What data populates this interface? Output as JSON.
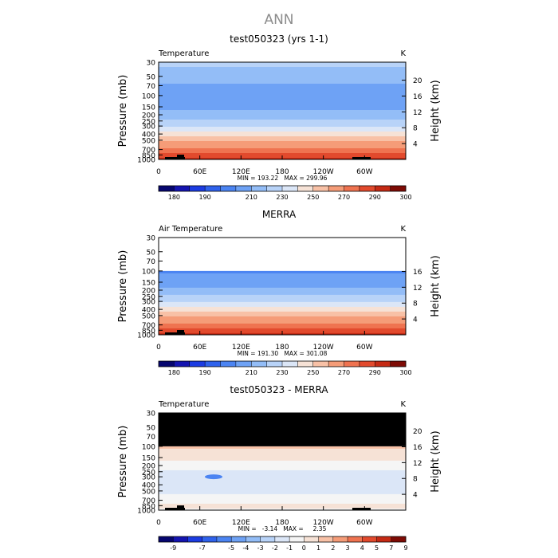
{
  "page_title": "ANN",
  "colors": {
    "temp_scale": [
      "#06066f",
      "#1414b0",
      "#1c3ce2",
      "#2f62ec",
      "#4b84f2",
      "#6ea2f5",
      "#93bdf7",
      "#b8d3f8",
      "#dbe6f7",
      "#f6e2d6",
      "#f8c1a6",
      "#f59c78",
      "#ef7350",
      "#e24a2d",
      "#c52a14",
      "#7e0b05"
    ],
    "diff_scale": [
      "#06066f",
      "#1414b0",
      "#1c3ce2",
      "#2f62ec",
      "#4b84f2",
      "#6ea2f5",
      "#93bdf7",
      "#b8d3f8",
      "#dbe6f7",
      "#f5f5f5",
      "#f6e2d6",
      "#f8c1a6",
      "#f59c78",
      "#ef7350",
      "#e24a2d",
      "#c52a14",
      "#7e0b05"
    ]
  },
  "chart_data": [
    {
      "type": "heatmap",
      "title": "test050323 (yrs 1-1)",
      "variable_label": "Temperature",
      "units": "K",
      "ylabel": "Pressure (mb)",
      "ylabel_right": "Height (km)",
      "x_ticks": [
        "0",
        "60E",
        "120E",
        "180",
        "120W",
        "60W"
      ],
      "p_ticks": [
        30,
        50,
        70,
        100,
        150,
        200,
        250,
        300,
        400,
        500,
        700,
        850,
        1000
      ],
      "height_ticks": [
        20,
        16,
        12,
        8,
        4
      ],
      "ylim": [
        1000,
        30
      ],
      "stats": "MIN = 193.22   MAX = 299.96",
      "min": 193.22,
      "max": 299.96,
      "colorbar": {
        "levels": [
          180,
          185,
          190,
          195,
          200,
          210,
          220,
          230,
          240,
          250,
          260,
          270,
          280,
          290,
          295,
          300
        ],
        "labels": [
          "180",
          "190",
          "210",
          "230",
          "250",
          "270",
          "290",
          "300"
        ]
      },
      "approx_zonal_profile": {
        "pressure": [
          30,
          50,
          70,
          100,
          150,
          200,
          250,
          300,
          400,
          500,
          700,
          850,
          1000
        ],
        "value": [
          222,
          215,
          208,
          200,
          206,
          214,
          222,
          230,
          245,
          258,
          274,
          284,
          292
        ]
      }
    },
    {
      "type": "heatmap",
      "title": "MERRA",
      "variable_label": "Air Temperature",
      "units": "K",
      "ylabel": "Pressure (mb)",
      "ylabel_right": "Height (km)",
      "x_ticks": [
        "0",
        "60E",
        "120E",
        "180",
        "120W",
        "60W"
      ],
      "p_ticks": [
        30,
        50,
        70,
        100,
        150,
        200,
        250,
        300,
        400,
        500,
        700,
        850,
        1000
      ],
      "height_ticks": [
        16,
        12,
        8,
        4
      ],
      "ylim": [
        1000,
        30
      ],
      "data_top_pressure": 100,
      "stats": "MIN = 191.30   MAX = 301.08",
      "min": 191.3,
      "max": 301.08,
      "colorbar": {
        "levels": [
          180,
          185,
          190,
          195,
          200,
          210,
          220,
          230,
          240,
          250,
          260,
          270,
          280,
          290,
          295,
          300
        ],
        "labels": [
          "180",
          "190",
          "210",
          "230",
          "250",
          "270",
          "290",
          "300"
        ]
      },
      "approx_zonal_profile": {
        "pressure": [
          100,
          150,
          200,
          250,
          300,
          400,
          500,
          700,
          850,
          1000
        ],
        "value": [
          198,
          205,
          213,
          221,
          229,
          244,
          257,
          273,
          283,
          292
        ]
      }
    },
    {
      "type": "heatmap",
      "title": "test050323 - MERRA",
      "variable_label": "Temperature",
      "units": "K",
      "ylabel": "Pressure (mb)",
      "ylabel_right": "Height (km)",
      "x_ticks": [
        "0",
        "60E",
        "120E",
        "180",
        "120W",
        "60W"
      ],
      "p_ticks": [
        30,
        50,
        70,
        100,
        150,
        200,
        250,
        300,
        400,
        500,
        700,
        850,
        1000
      ],
      "height_ticks": [
        20,
        16,
        12,
        8,
        4
      ],
      "ylim": [
        1000,
        30
      ],
      "missing_above_pressure": 100,
      "stats": "MIN =   -3.14   MAX =     2.35",
      "min": -3.14,
      "max": 2.35,
      "colorbar": {
        "levels": [
          -9,
          -8,
          -7,
          -6,
          -5,
          -4,
          -3,
          -2,
          -1,
          0,
          1,
          2,
          3,
          4,
          5,
          7,
          9
        ],
        "labels": [
          "-9",
          "-7",
          "-5",
          "-4",
          "-3",
          "-2",
          "-1",
          "0",
          "1",
          "2",
          "3",
          "4",
          "5",
          "7",
          "9"
        ]
      },
      "approx_zonal_profile": {
        "pressure": [
          100,
          150,
          200,
          250,
          300,
          400,
          500,
          700,
          850,
          1000
        ],
        "value": [
          1.2,
          0.3,
          -0.6,
          -1.2,
          -1.4,
          -1.5,
          -1.2,
          -0.4,
          0.3,
          -0.5
        ]
      }
    }
  ]
}
